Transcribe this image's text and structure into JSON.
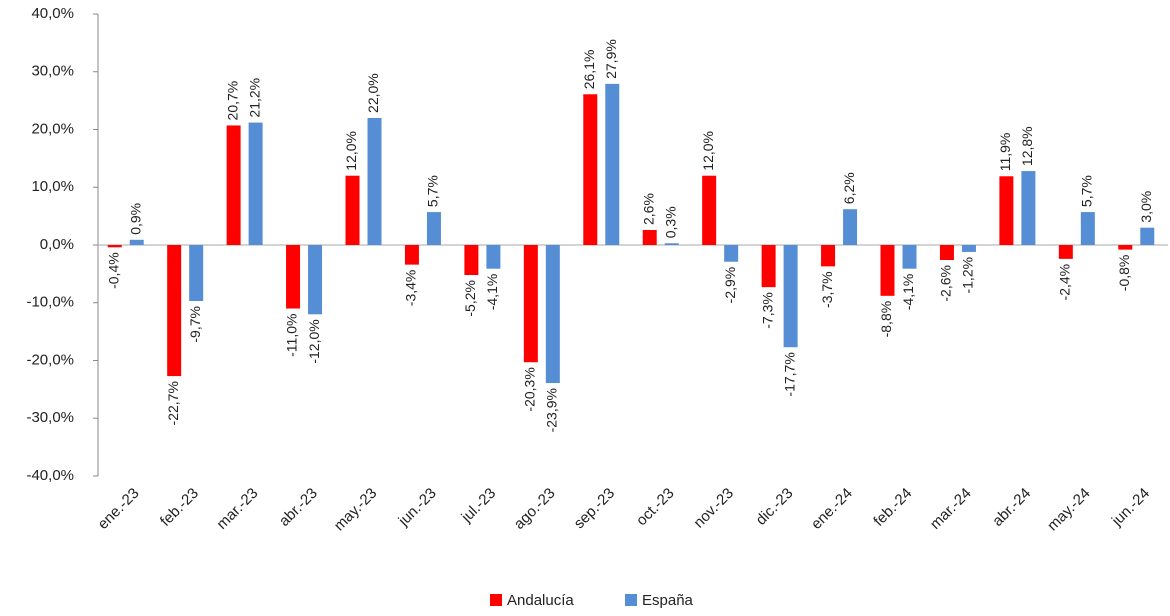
{
  "chart_data": {
    "type": "bar",
    "categories": [
      "ene.-23",
      "feb.-23",
      "mar.-23",
      "abr.-23",
      "may.-23",
      "jun.-23",
      "jul.-23",
      "ago.-23",
      "sep.-23",
      "oct.-23",
      "nov.-23",
      "dic.-23",
      "ene.-24",
      "feb.-24",
      "mar.-24",
      "abr.-24",
      "may.-24",
      "jun.-24"
    ],
    "series": [
      {
        "name": "Andalucía",
        "color": "#ff0000",
        "values": [
          -0.4,
          -22.7,
          20.7,
          -11.0,
          12.0,
          -3.4,
          -5.2,
          -20.3,
          26.1,
          2.6,
          12.0,
          -7.3,
          -3.7,
          -8.8,
          -2.6,
          11.9,
          -2.4,
          -0.8
        ],
        "value_labels": [
          "-0,4%",
          "-22,7%",
          "20,7%",
          "-11,0%",
          "12,0%",
          "-3,4%",
          "-5,2%",
          "-20,3%",
          "26,1%",
          "2,6%",
          "12,0%",
          "-7,3%",
          "-3,7%",
          "-8,8%",
          "-2,6%",
          "11,9%",
          "-2,4%",
          "-0,8%"
        ]
      },
      {
        "name": "España",
        "color": "#558ed5",
        "values": [
          0.9,
          -9.7,
          21.2,
          -12.0,
          22.0,
          5.7,
          -4.1,
          -23.9,
          27.9,
          0.3,
          -2.9,
          -17.7,
          6.2,
          -4.1,
          -1.2,
          12.8,
          5.7,
          3.0
        ],
        "value_labels": [
          "0,9%",
          "-9,7%",
          "21,2%",
          "-12,0%",
          "22,0%",
          "5,7%",
          "-4,1%",
          "-23,9%",
          "27,9%",
          "0,3%",
          "-2,9%",
          "-17,7%",
          "6,2%",
          "-4,1%",
          "-1,2%",
          "12,8%",
          "5,7%",
          "3,0%"
        ]
      }
    ],
    "ylim": [
      -40,
      40
    ],
    "yticks": [
      {
        "value": -40,
        "label": "-40,0%"
      },
      {
        "value": -30,
        "label": "-30,0%"
      },
      {
        "value": -20,
        "label": "-20,0%"
      },
      {
        "value": -10,
        "label": "-10,0%"
      },
      {
        "value": 0,
        "label": "0,0%"
      },
      {
        "value": 10,
        "label": "10,0%"
      },
      {
        "value": 20,
        "label": "20,0%"
      },
      {
        "value": 30,
        "label": "30,0%"
      },
      {
        "value": 40,
        "label": "40,0%"
      }
    ],
    "legend": "bottom"
  }
}
